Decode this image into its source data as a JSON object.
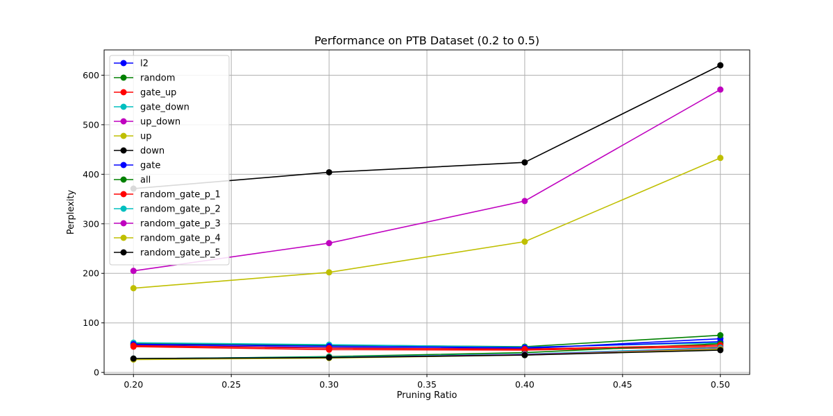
{
  "chart_data": {
    "type": "line",
    "title": "Performance on PTB Dataset (0.2 to 0.5)",
    "xlabel": "Pruning Ratio",
    "ylabel": "Perplexity",
    "x": [
      0.2,
      0.3,
      0.4,
      0.5
    ],
    "xlim": [
      0.185,
      0.515
    ],
    "ylim": [
      -4,
      651
    ],
    "xticks": [
      "0.20",
      "0.25",
      "0.30",
      "0.35",
      "0.40",
      "0.45",
      "0.50"
    ],
    "yticks": [
      "0",
      "100",
      "200",
      "300",
      "400",
      "500",
      "600"
    ],
    "grid": true,
    "legend": "top-left",
    "series": [
      {
        "name": "l2",
        "color": "#0000ff",
        "values": [
          55,
          50,
          48,
          68
        ]
      },
      {
        "name": "random",
        "color": "#008000",
        "values": [
          58,
          55,
          52,
          75
        ]
      },
      {
        "name": "gate_up",
        "color": "#ff0000",
        "values": [
          52,
          46,
          45,
          52
        ]
      },
      {
        "name": "gate_down",
        "color": "#00bfbf",
        "values": [
          60,
          56,
          51,
          60
        ]
      },
      {
        "name": "up_down",
        "color": "#bf00bf",
        "values": [
          205,
          261,
          346,
          571
        ]
      },
      {
        "name": "up",
        "color": "#bfbf00",
        "values": [
          170,
          202,
          264,
          433
        ]
      },
      {
        "name": "down",
        "color": "#000000",
        "values": [
          371,
          404,
          424,
          620
        ]
      },
      {
        "name": "gate",
        "color": "#0000ff",
        "values": [
          57,
          53,
          50,
          62
        ]
      },
      {
        "name": "all",
        "color": "#008000",
        "values": [
          27,
          32,
          40,
          58
        ]
      },
      {
        "name": "random_gate_p_1",
        "color": "#ff0000",
        "values": [
          54,
          49,
          47,
          55
        ]
      },
      {
        "name": "random_gate_p_2",
        "color": "#00bfbf",
        "values": [
          28,
          31,
          37,
          50
        ]
      },
      {
        "name": "random_gate_p_3",
        "color": "#bf00bf",
        "values": [
          27,
          30,
          36,
          48
        ]
      },
      {
        "name": "random_gate_p_4",
        "color": "#bfbf00",
        "values": [
          26,
          29,
          35,
          47
        ]
      },
      {
        "name": "random_gate_p_5",
        "color": "#000000",
        "values": [
          28,
          30,
          35,
          45
        ]
      }
    ]
  }
}
